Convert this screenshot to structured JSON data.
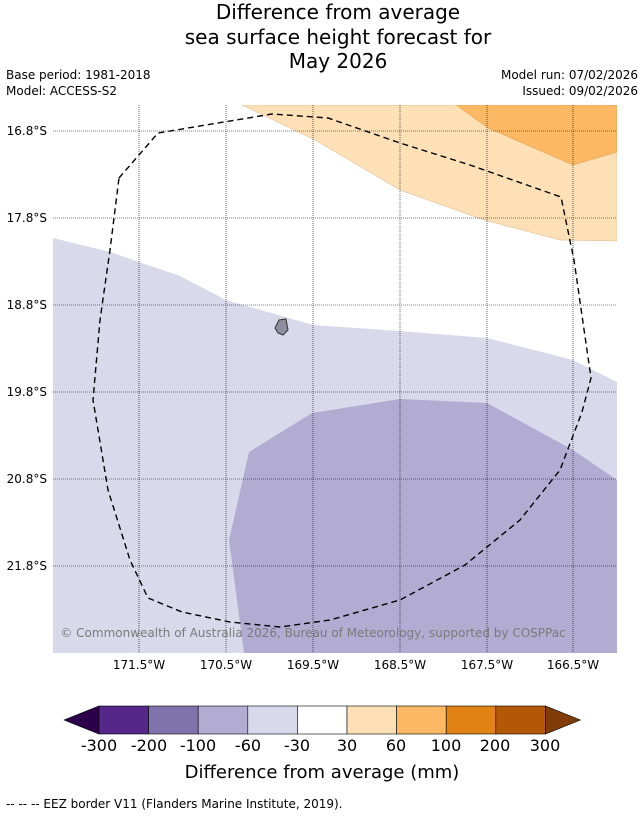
{
  "title_lines": [
    "Difference from average",
    "sea surface height forecast for",
    "May 2026"
  ],
  "meta": {
    "base_period": "Base period: 1981-2018",
    "model": "Model: ACCESS-S2",
    "model_run": "Model run: 07/02/2026",
    "issued": "Issued: 09/02/2026"
  },
  "lat_labels": [
    "16.8°S",
    "17.8°S",
    "18.8°S",
    "19.8°S",
    "20.8°S",
    "21.8°S"
  ],
  "lon_labels": [
    "171.5°W",
    "170.5°W",
    "169.5°W",
    "168.5°W",
    "167.5°W",
    "166.5°W"
  ],
  "attribution": "© Commonwealth of Australia 2026, Bureau of Meteorology, supported by COSPPac",
  "colorbar": {
    "labels": [
      "-300",
      "-200",
      "-100",
      "-60",
      "-30",
      "30",
      "60",
      "100",
      "200",
      "300"
    ],
    "colors": [
      "#2d004b",
      "#542788",
      "#8073ac",
      "#b2abd2",
      "#d8daeb",
      "#ffffff",
      "#fee0b6",
      "#fdb863",
      "#e08214",
      "#b35806",
      "#7f3b08"
    ],
    "title": "Difference from average (mm)"
  },
  "footnote": "--  --  -- EEZ border V11 (Flanders Marine Institute, 2019)."
}
